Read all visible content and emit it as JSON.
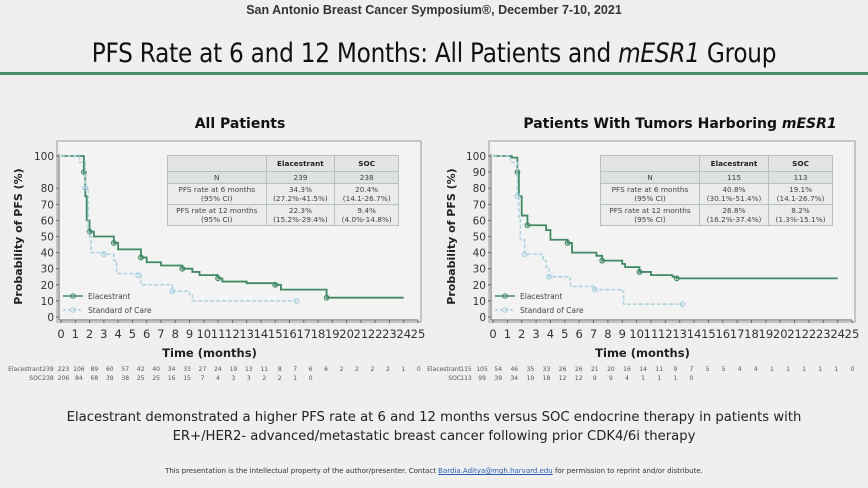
{
  "header": {
    "conference": "San Antonio Breast Cancer Symposium®, December 7-10, 2021",
    "title_pre": "PFS Rate at 6 and 12 Months: All Patients and ",
    "title_italic": "mESR1",
    "title_post": " Group"
  },
  "colors": {
    "elacestrant": "#3f8a64",
    "soc": "#a8cfe0",
    "rule": "#4b8c6d"
  },
  "chart_data": [
    {
      "type": "line",
      "step": true,
      "title": "All Patients",
      "ylabel": "Probability of PFS (%)",
      "xlabel": "Time (months)",
      "xlim": [
        0,
        25
      ],
      "ylim": [
        0,
        100
      ],
      "xticks": [
        0,
        1,
        2,
        3,
        4,
        5,
        6,
        7,
        8,
        9,
        10,
        11,
        12,
        13,
        14,
        15,
        16,
        17,
        18,
        19,
        20,
        21,
        22,
        23,
        24,
        25
      ],
      "yticks": [
        0,
        10,
        20,
        30,
        40,
        50,
        60,
        70,
        80,
        100
      ],
      "legend": "bottom-left",
      "series": [
        {
          "name": "Elacestrant",
          "points": [
            [
              0,
              100
            ],
            [
              1.3,
              100
            ],
            [
              1.6,
              90
            ],
            [
              1.7,
              75
            ],
            [
              1.8,
              60
            ],
            [
              2,
              53
            ],
            [
              2.3,
              50
            ],
            [
              3.3,
              50
            ],
            [
              3.7,
              46
            ],
            [
              4,
              42
            ],
            [
              5.3,
              42
            ],
            [
              5.6,
              37
            ],
            [
              6,
              34
            ],
            [
              7,
              32
            ],
            [
              8.5,
              30
            ],
            [
              9.2,
              28
            ],
            [
              9.7,
              26
            ],
            [
              11,
              24
            ],
            [
              11.3,
              22
            ],
            [
              13,
              21
            ],
            [
              15,
              20
            ],
            [
              15.4,
              17
            ],
            [
              18.5,
              17
            ],
            [
              18.6,
              12
            ],
            [
              24,
              12
            ]
          ]
        },
        {
          "name": "Standard of Care",
          "points": [
            [
              0,
              100
            ],
            [
              1.3,
              96
            ],
            [
              1.7,
              80
            ],
            [
              1.9,
              50
            ],
            [
              2.1,
              40
            ],
            [
              3,
              39
            ],
            [
              3.7,
              35
            ],
            [
              3.9,
              27
            ],
            [
              5.4,
              26
            ],
            [
              5.6,
              20
            ],
            [
              7.3,
              20
            ],
            [
              7.8,
              16
            ],
            [
              9,
              14
            ],
            [
              9.2,
              10
            ],
            [
              16.5,
              10
            ]
          ]
        }
      ],
      "table": {
        "headers": [
          "",
          "Elacestrant",
          "SOC"
        ],
        "rows": [
          [
            "N",
            "239",
            "238"
          ],
          [
            "PFS rate at 6 months\n(95% CI)",
            "34.3%\n(27.2%-41.5%)",
            "20.4%\n(14.1-26.7%)"
          ],
          [
            "PFS rate at 12 months\n(95% CI)",
            "22.3%\n(15.2%-29.4%)",
            "9.4%\n(4.0%-14.8%)"
          ]
        ]
      },
      "at_risk": [
        {
          "label": "Elacestrant",
          "values": [
            239,
            223,
            106,
            89,
            60,
            57,
            42,
            40,
            34,
            33,
            27,
            24,
            19,
            13,
            11,
            8,
            7,
            6,
            6,
            2,
            2,
            2,
            2,
            1,
            0
          ]
        },
        {
          "label": "SOC",
          "values": [
            238,
            206,
            84,
            68,
            39,
            38,
            25,
            25,
            16,
            15,
            7,
            4,
            3,
            3,
            2,
            2,
            1,
            0
          ]
        }
      ]
    },
    {
      "type": "line",
      "step": true,
      "title_pre": "Patients With Tumors Harboring ",
      "title_italic": "mESR1",
      "ylabel": "Probability of PFS (%)",
      "xlabel": "Time (months)",
      "xlim": [
        0,
        25
      ],
      "ylim": [
        0,
        100
      ],
      "xticks": [
        0,
        1,
        2,
        3,
        4,
        5,
        6,
        7,
        8,
        9,
        10,
        11,
        12,
        13,
        14,
        15,
        16,
        17,
        18,
        19,
        20,
        21,
        22,
        23,
        24,
        25
      ],
      "yticks": [
        0,
        10,
        20,
        30,
        40,
        50,
        60,
        70,
        80,
        90,
        100
      ],
      "legend": "bottom-left",
      "series": [
        {
          "name": "Elacestrant",
          "points": [
            [
              0,
              100
            ],
            [
              1.3,
              99
            ],
            [
              1.7,
              90
            ],
            [
              1.8,
              75
            ],
            [
              2,
              63
            ],
            [
              2.4,
              57
            ],
            [
              3.7,
              54
            ],
            [
              4,
              48
            ],
            [
              5.2,
              46
            ],
            [
              5.5,
              40
            ],
            [
              7.2,
              38
            ],
            [
              7.6,
              35
            ],
            [
              9,
              33
            ],
            [
              9.2,
              31
            ],
            [
              10.2,
              28
            ],
            [
              11,
              26
            ],
            [
              12.5,
              25
            ],
            [
              12.8,
              24
            ],
            [
              24,
              24
            ]
          ]
        },
        {
          "name": "Standard of Care",
          "points": [
            [
              0,
              100
            ],
            [
              1.2,
              96
            ],
            [
              1.7,
              75
            ],
            [
              1.8,
              62
            ],
            [
              1.9,
              48
            ],
            [
              2.2,
              39
            ],
            [
              3.5,
              35
            ],
            [
              3.7,
              31
            ],
            [
              3.9,
              25
            ],
            [
              5.2,
              24
            ],
            [
              5.4,
              19
            ],
            [
              7.1,
              17
            ],
            [
              9,
              16
            ],
            [
              9.1,
              8
            ],
            [
              13.2,
              8
            ]
          ]
        }
      ],
      "table": {
        "headers": [
          "",
          "Elacestrant",
          "SOC"
        ],
        "rows": [
          [
            "N",
            "115",
            "113"
          ],
          [
            "PFS rate at 6 months\n(95% CI)",
            "40.8%\n(30.1%-51.4%)",
            "19.1%\n(14.1-26.7%)"
          ],
          [
            "PFS rate at 12 months\n(95% CI)",
            "26.8%\n(16.2%-37.4%)",
            "8.2%\n(1.3%-15.1%)"
          ]
        ]
      },
      "at_risk": [
        {
          "label": "Elacestrant",
          "values": [
            115,
            105,
            54,
            46,
            35,
            33,
            26,
            26,
            21,
            20,
            16,
            14,
            11,
            9,
            7,
            5,
            5,
            4,
            4,
            1,
            1,
            1,
            1,
            1,
            0
          ]
        },
        {
          "label": "SOC",
          "values": [
            113,
            99,
            39,
            34,
            19,
            18,
            12,
            12,
            9,
            9,
            4,
            1,
            1,
            1,
            0
          ]
        }
      ]
    }
  ],
  "footer": {
    "conclusion_line1": "Elacestrant demonstrated a higher PFS rate at 6 and 12 months versus SOC endocrine therapy in patients with",
    "conclusion_line2": "ER+/HER2- advanced/metastatic breast cancer following prior CDK4/6i therapy",
    "notice_pre": "This presentation is the intellectual property of the author/presenter. Contact ",
    "notice_email": "Bardia.Aditya@mgh.harvard.edu",
    "notice_post": " for permission to reprint and/or distribute."
  }
}
